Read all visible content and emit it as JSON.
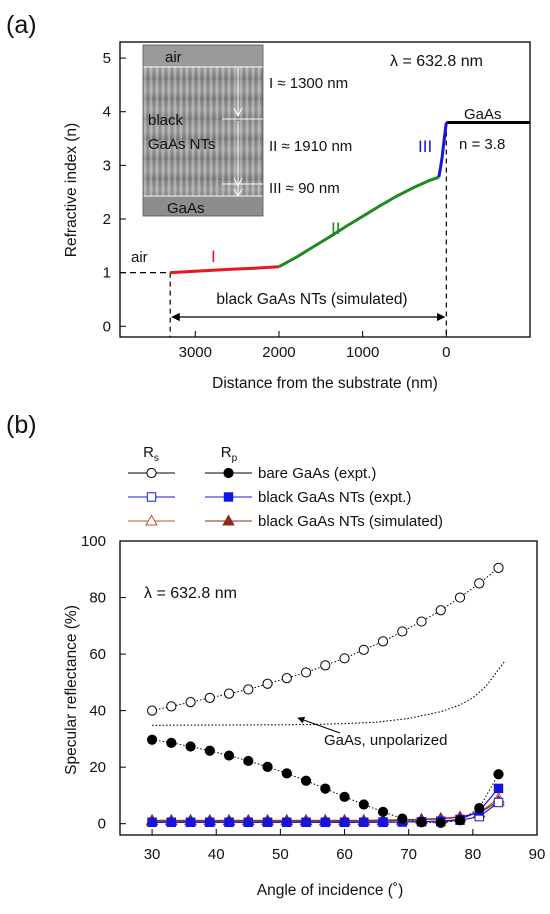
{
  "panel_a": {
    "label": "(a)",
    "wavelength_label": "λ = 632.8 nm",
    "gaas_label": "GaAs",
    "n_label": "n = 3.8",
    "air_label": "air",
    "region_labels": [
      "I",
      "II",
      "III"
    ],
    "span_label": "black GaAs NTs (simulated)",
    "inset": {
      "top_label": "air",
      "mid_label_1": "black",
      "mid_label_2": "GaAs NTs",
      "bottom_label": "GaAs",
      "thickness_labels": [
        "I ≈ 1300 nm",
        "II ≈ 1910 nm",
        "III ≈ 90 nm"
      ]
    }
  },
  "panel_b": {
    "label": "(b)",
    "wavelength_label": "λ = 632.8 nm",
    "annotation": "GaAs, unpolarized",
    "legend": {
      "rs_header": "R",
      "rs_sub": "s",
      "rp_header": "R",
      "rp_sub": "p",
      "entries": [
        "bare GaAs (expt.)",
        "black GaAs NTs (expt.)",
        "black GaAs NTs (simulated)"
      ]
    }
  },
  "chart_data": [
    {
      "type": "line",
      "xlabel": "Distance from the substrate (nm)",
      "ylabel": "Refractive index (n)",
      "xlim": [
        3900,
        -1000
      ],
      "ylim": [
        -0.2,
        5.3
      ],
      "x_ticks": [
        3000,
        2000,
        1000,
        0
      ],
      "y_ticks": [
        0,
        1,
        2,
        3,
        4,
        5
      ],
      "series": [
        {
          "color": "#e8161b",
          "x": [
            3300,
            2950,
            2600,
            2300,
            2000
          ],
          "y": [
            1.0,
            1.03,
            1.06,
            1.08,
            1.11
          ]
        },
        {
          "color": "#1f8a1f",
          "x": [
            2000,
            1800,
            1600,
            1400,
            1200,
            1000,
            800,
            600,
            400,
            200,
            90
          ],
          "y": [
            1.11,
            1.28,
            1.47,
            1.66,
            1.86,
            2.05,
            2.24,
            2.42,
            2.58,
            2.72,
            2.78
          ]
        },
        {
          "color": "#1515e0",
          "x": [
            90,
            70,
            50,
            30,
            15,
            0
          ],
          "y": [
            2.78,
            2.95,
            3.15,
            3.42,
            3.62,
            3.8
          ]
        },
        {
          "color": "#000000",
          "x": [
            0,
            -1000
          ],
          "y": [
            3.8,
            3.8
          ]
        }
      ]
    },
    {
      "type": "scatter",
      "xlabel": "Angle of incidence (˚)",
      "ylabel": "Specular reflectance (%)",
      "xlim": [
        25,
        90
      ],
      "ylim": [
        -4,
        100
      ],
      "x_ticks": [
        30,
        40,
        50,
        60,
        70,
        80,
        90
      ],
      "y_ticks": [
        0,
        20,
        40,
        60,
        80,
        100
      ],
      "series": [
        {
          "name": "bare GaAs (expt.)",
          "polarization": "Rs",
          "marker": "open-circle",
          "color": "#000000",
          "x": [
            30,
            33,
            36,
            39,
            42,
            45,
            48,
            51,
            54,
            57,
            60,
            63,
            66,
            69,
            72,
            75,
            78,
            81,
            84
          ],
          "y": [
            40,
            41.5,
            43,
            44.5,
            46,
            47.5,
            49.5,
            51.5,
            53.5,
            56,
            58.5,
            61.5,
            64.5,
            68,
            71.5,
            75.5,
            80,
            85,
            90.5
          ]
        },
        {
          "name": "bare GaAs (expt.)",
          "polarization": "Rp",
          "marker": "filled-circle",
          "color": "#000000",
          "x": [
            30,
            33,
            36,
            39,
            42,
            45,
            48,
            51,
            54,
            57,
            60,
            63,
            66,
            69,
            72,
            75,
            78,
            81,
            84
          ],
          "y": [
            29.7,
            28.6,
            27.3,
            25.8,
            24.1,
            22.2,
            20.1,
            17.8,
            15.2,
            12.4,
            9.5,
            6.8,
            4.2,
            1.8,
            0.5,
            0.3,
            1.2,
            5.5,
            17.5
          ]
        },
        {
          "name": "black GaAs NTs (expt.)",
          "polarization": "Rs",
          "marker": "open-square",
          "color": "#1515e0",
          "x": [
            30,
            33,
            36,
            39,
            42,
            45,
            48,
            51,
            54,
            57,
            60,
            63,
            66,
            69,
            72,
            75,
            78,
            81,
            84
          ],
          "y": [
            0.5,
            0.5,
            0.5,
            0.5,
            0.5,
            0.5,
            0.5,
            0.5,
            0.5,
            0.5,
            0.5,
            0.5,
            0.6,
            0.6,
            0.7,
            0.8,
            1.2,
            2.5,
            7.5
          ]
        },
        {
          "name": "black GaAs NTs (expt.)",
          "polarization": "Rp",
          "marker": "filled-square",
          "color": "#1515e0",
          "x": [
            30,
            33,
            36,
            39,
            42,
            45,
            48,
            51,
            54,
            57,
            60,
            63,
            66,
            69,
            72,
            75,
            78,
            81,
            84
          ],
          "y": [
            0.5,
            0.5,
            0.5,
            0.5,
            0.5,
            0.5,
            0.5,
            0.5,
            0.5,
            0.5,
            0.5,
            0.5,
            0.5,
            0.6,
            0.7,
            0.9,
            1.5,
            4.5,
            12.5
          ]
        },
        {
          "name": "black GaAs NTs (simulated)",
          "polarization": "Rs",
          "marker": "open-triangle",
          "color": "#b5533b",
          "x": [
            30,
            33,
            36,
            39,
            42,
            45,
            48,
            51,
            54,
            57,
            60,
            63,
            66,
            69,
            72,
            75,
            78,
            81,
            84
          ],
          "y": [
            1.2,
            1.2,
            1.2,
            1.2,
            1.2,
            1.2,
            1.2,
            1.2,
            1.2,
            1.2,
            1.2,
            1.2,
            1.3,
            1.4,
            1.6,
            1.9,
            2.4,
            3.8,
            9.0
          ]
        },
        {
          "name": "black GaAs NTs (simulated)",
          "polarization": "Rp",
          "marker": "filled-triangle",
          "color": "#8b2b16",
          "x": [
            30,
            33,
            36,
            39,
            42,
            45,
            48,
            51,
            54,
            57,
            60,
            63,
            66,
            69,
            72,
            75,
            78,
            81,
            84
          ],
          "y": [
            1.0,
            1.0,
            1.0,
            1.0,
            1.0,
            1.0,
            1.0,
            1.0,
            1.0,
            1.0,
            1.0,
            1.0,
            1.1,
            1.2,
            1.4,
            1.7,
            2.3,
            3.8,
            8.0
          ]
        },
        {
          "name": "GaAs, unpolarized",
          "marker": "none",
          "line": "dotted",
          "color": "#000000",
          "x": [
            30,
            40,
            50,
            55,
            60,
            65,
            70,
            75,
            78,
            80,
            82,
            84,
            85
          ],
          "y": [
            34.8,
            34.9,
            35.0,
            35.1,
            35.4,
            35.9,
            37.2,
            39.6,
            42.0,
            44.5,
            48.5,
            54.5,
            57.5
          ]
        }
      ]
    }
  ]
}
